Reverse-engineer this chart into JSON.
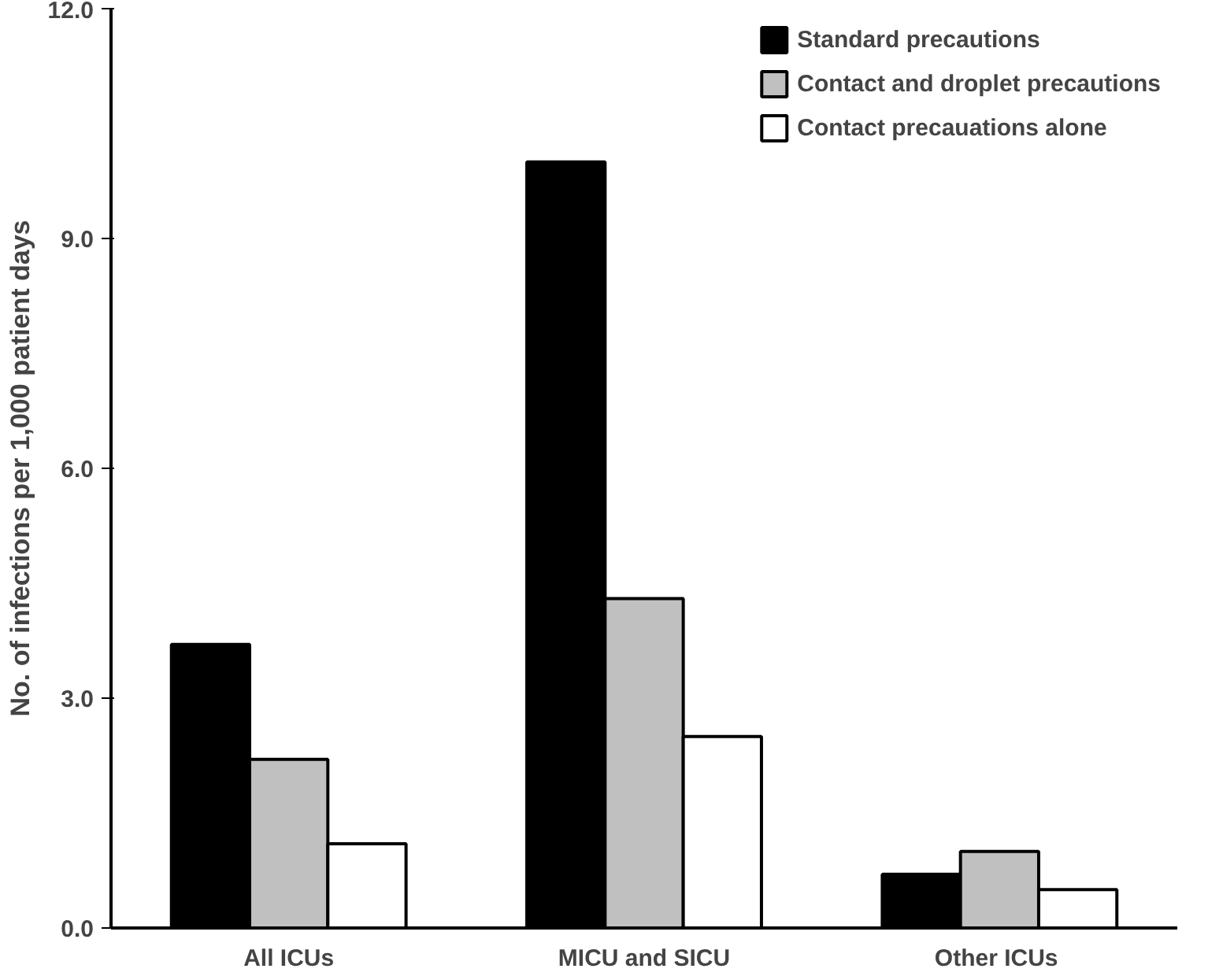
{
  "chart_data": {
    "type": "bar",
    "ylabel": "No. of infections per 1,000 patient days",
    "categories": [
      "All ICUs",
      "MICU and SICU",
      "Other  ICUs"
    ],
    "series": [
      {
        "name": "Standard precautions",
        "color": "#000000",
        "values": [
          3.7,
          10.0,
          0.7
        ]
      },
      {
        "name": "Contact and droplet precautions",
        "color": "#c0c0c0",
        "values": [
          2.2,
          4.3,
          1.0
        ]
      },
      {
        "name": "Contact precauations alone",
        "color": "#ffffff",
        "values": [
          1.1,
          2.5,
          0.5
        ]
      }
    ],
    "ylim": [
      0,
      12
    ],
    "yticks": [
      {
        "value": 0,
        "label": "0.0"
      },
      {
        "value": 3,
        "label": "3.0"
      },
      {
        "value": 6,
        "label": "6.0"
      },
      {
        "value": 9,
        "label": "9.0"
      },
      {
        "value": 12,
        "label": "12.0"
      }
    ],
    "grid": false,
    "legend": "top right"
  }
}
